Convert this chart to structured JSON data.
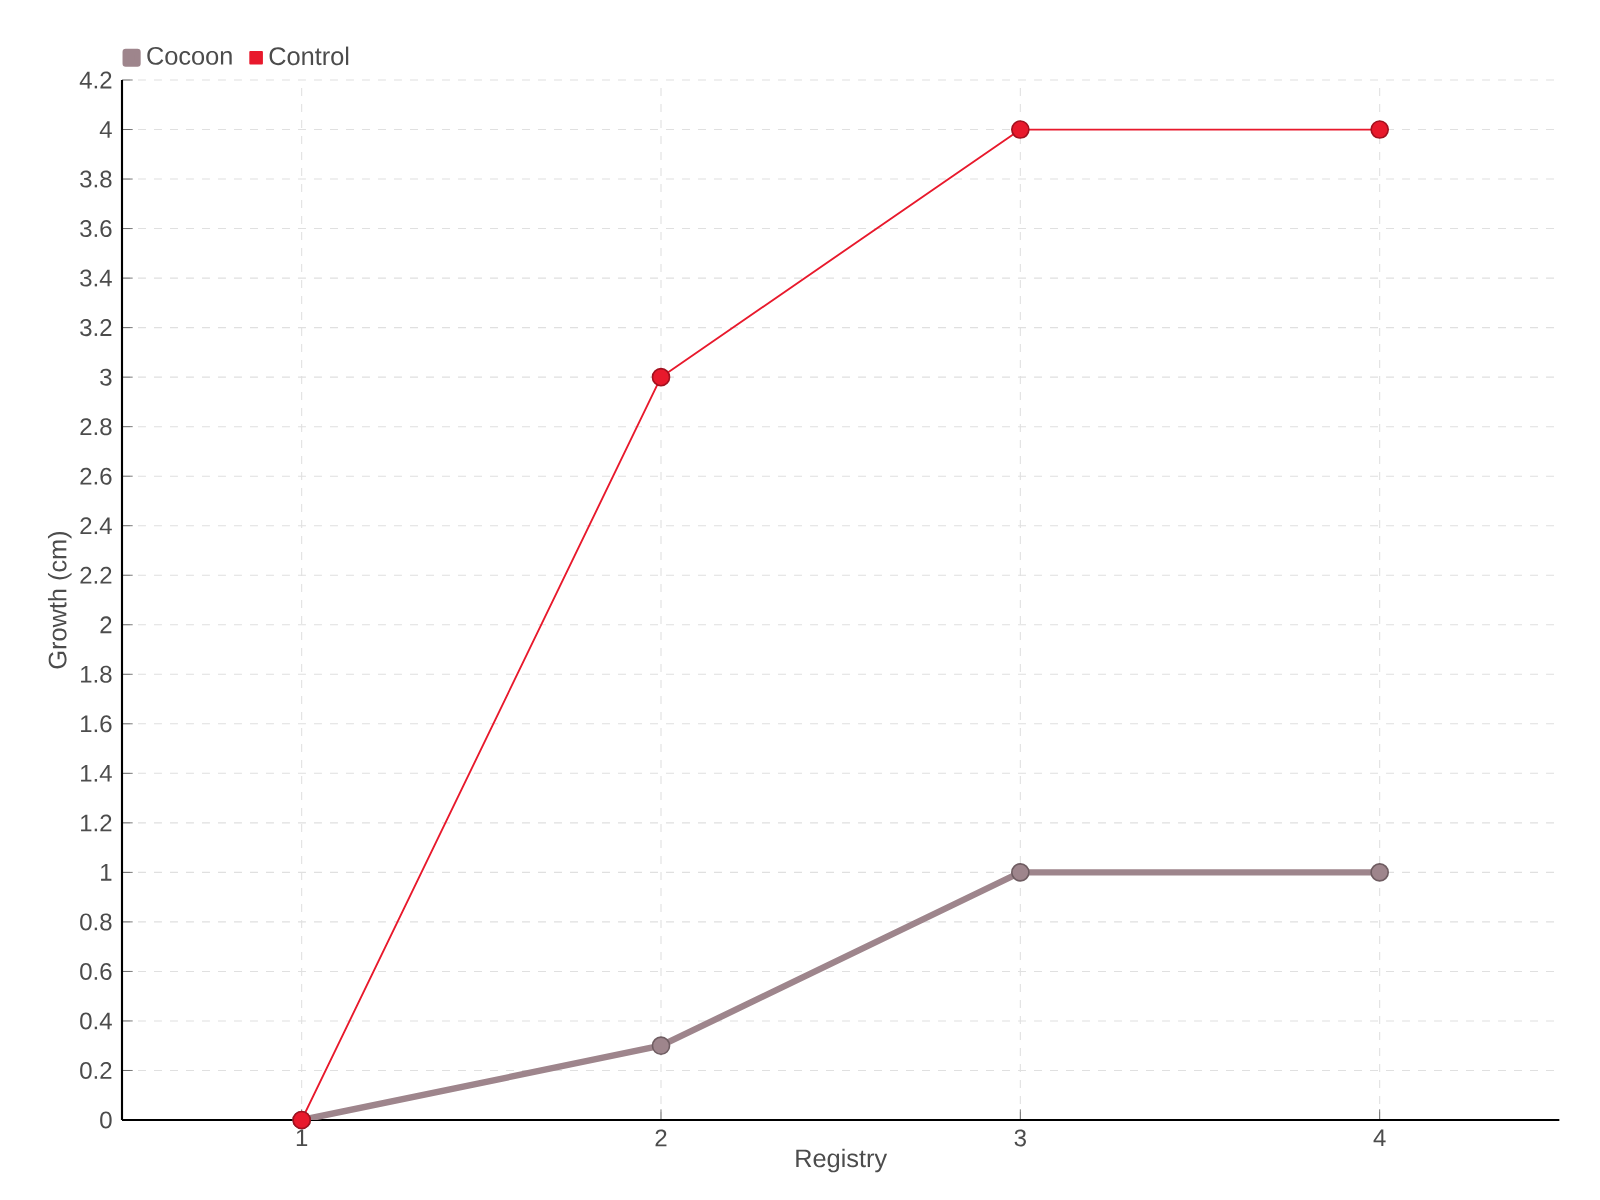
{
  "chart_data": {
    "type": "line",
    "xlabel": "Registry",
    "ylabel": "Growth (cm)",
    "categories": [
      "1",
      "2",
      "3",
      "4"
    ],
    "series": [
      {
        "name": "Cocoon",
        "color": "#9e858c",
        "values": [
          0,
          0.3,
          1,
          1
        ]
      },
      {
        "name": "Control",
        "color": "#e8192c",
        "values": [
          0,
          3,
          4,
          4
        ]
      }
    ],
    "ylim": [
      0,
      4.2
    ],
    "yticks": [
      0,
      0.2,
      0.4,
      0.6,
      0.8,
      1,
      1.2,
      1.4,
      1.6,
      1.8,
      2,
      2.2,
      2.4,
      2.6,
      2.8,
      3,
      3.2,
      3.4,
      3.6,
      3.8,
      4,
      4.2
    ],
    "grid": true,
    "legend": "top left",
    "marker": "circle",
    "line_style": "solid"
  }
}
